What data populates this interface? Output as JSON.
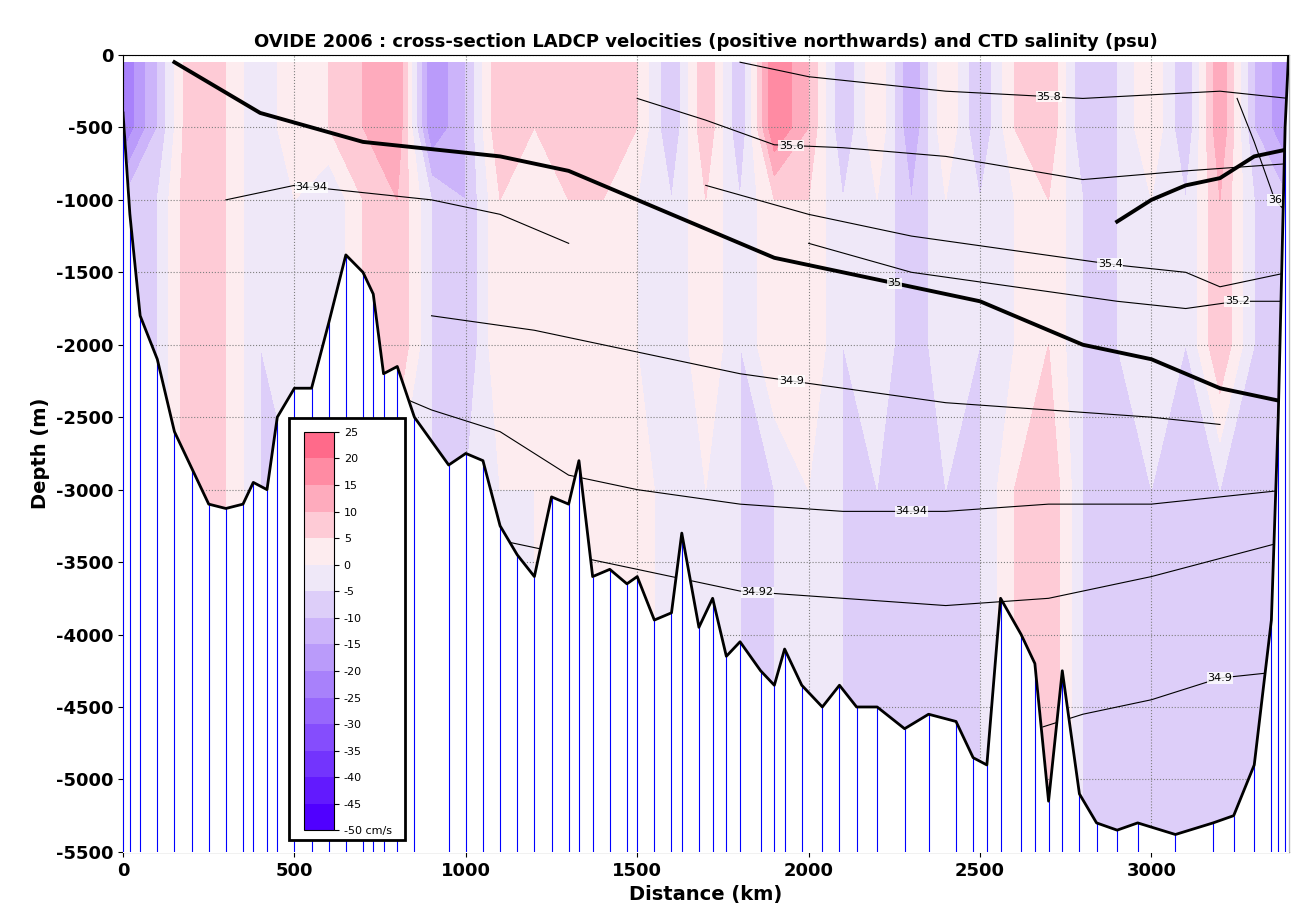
{
  "chart_data": {
    "type": "contour",
    "title": "OVIDE 2006 : cross-section LADCP velocities (positive northwards) and CTD salinity (psu)",
    "x_label": "Distance (km)",
    "y_label": "Depth (m)",
    "xlim": [
      0,
      3400
    ],
    "ylim": [
      -5500,
      0
    ],
    "xticks": [
      0,
      500,
      1000,
      1500,
      2000,
      2500,
      3000
    ],
    "yticks": [
      -5500,
      -5000,
      -4500,
      -4000,
      -3500,
      -3000,
      -2500,
      -2000,
      -1500,
      -1000,
      -500,
      0
    ],
    "grid": true,
    "velocity": {
      "x": [
        0,
        100,
        200,
        300,
        400,
        500,
        600,
        700,
        800,
        900,
        1000,
        1100,
        1200,
        1300,
        1400,
        1500,
        1600,
        1700,
        1800,
        1900,
        2000,
        2100,
        2200,
        2300,
        2400,
        2500,
        2600,
        2700,
        2800,
        2900,
        3000,
        3100,
        3200,
        3300,
        3400
      ],
      "depth": [
        -50,
        -500,
        -1000,
        -1500,
        -2000,
        -3000,
        -4000,
        -5000,
        -5500
      ],
      "values": [
        [
          -25,
          -10,
          10,
          5,
          -5,
          5,
          5,
          10,
          15,
          -20,
          -10,
          10,
          5,
          10,
          10,
          5,
          -10,
          10,
          -10,
          20,
          10,
          -10,
          5,
          -15,
          5,
          -10,
          5,
          10,
          -10,
          -5,
          5,
          -10,
          15,
          -10,
          -20
        ],
        [
          -25,
          -10,
          10,
          5,
          -5,
          5,
          5,
          10,
          15,
          -20,
          -10,
          10,
          5,
          10,
          10,
          5,
          -10,
          10,
          -10,
          20,
          10,
          -10,
          5,
          -15,
          5,
          -10,
          5,
          10,
          -10,
          -5,
          5,
          -10,
          15,
          -10,
          -20
        ],
        [
          -10,
          -5,
          10,
          5,
          -5,
          0,
          -5,
          5,
          10,
          -5,
          -10,
          5,
          5,
          5,
          5,
          0,
          -5,
          5,
          -5,
          5,
          5,
          -5,
          0,
          -10,
          0,
          -5,
          0,
          5,
          -5,
          -5,
          0,
          -5,
          10,
          -5,
          -10
        ],
        [
          -10,
          -5,
          10,
          5,
          -5,
          0,
          -5,
          5,
          10,
          -5,
          -10,
          5,
          5,
          5,
          5,
          0,
          -5,
          5,
          -5,
          5,
          5,
          -5,
          0,
          -10,
          0,
          -5,
          0,
          5,
          -5,
          -5,
          0,
          -5,
          10,
          -5,
          -10
        ],
        [
          -10,
          -5,
          10,
          5,
          -5,
          0,
          -5,
          5,
          10,
          -5,
          -10,
          5,
          5,
          5,
          5,
          0,
          -5,
          5,
          -5,
          5,
          5,
          -5,
          0,
          -10,
          0,
          -5,
          0,
          5,
          -5,
          -5,
          0,
          -5,
          10,
          -5,
          -10
        ],
        [
          -5,
          -5,
          10,
          5,
          -5,
          -5,
          -5,
          -5,
          0,
          -5,
          -5,
          0,
          0,
          5,
          5,
          5,
          -5,
          0,
          -5,
          -5,
          0,
          -5,
          -5,
          -5,
          -5,
          -5,
          5,
          10,
          -5,
          -5,
          -5,
          -5,
          -5,
          -5,
          -10
        ],
        [
          -5,
          -5,
          10,
          5,
          -5,
          -5,
          -5,
          -5,
          0,
          -5,
          -5,
          0,
          0,
          5,
          5,
          5,
          -5,
          0,
          -5,
          -5,
          0,
          -5,
          -5,
          -5,
          -5,
          -5,
          5,
          10,
          -5,
          -5,
          -5,
          -5,
          -5,
          -5,
          -10
        ],
        [
          -5,
          -5,
          10,
          5,
          -5,
          -5,
          -5,
          -5,
          0,
          -5,
          -5,
          0,
          0,
          5,
          5,
          5,
          -5,
          0,
          -5,
          -5,
          0,
          -5,
          -5,
          -5,
          -5,
          -5,
          5,
          10,
          -5,
          -5,
          -5,
          -5,
          -5,
          -5,
          -10
        ],
        [
          -5,
          -5,
          10,
          5,
          -5,
          -5,
          -5,
          -5,
          0,
          -5,
          -5,
          0,
          0,
          5,
          5,
          5,
          -5,
          0,
          -5,
          -5,
          0,
          -5,
          -5,
          -5,
          -5,
          -5,
          5,
          10,
          -5,
          -5,
          -5,
          -5,
          -5,
          -5,
          -10
        ]
      ]
    },
    "colorbar": {
      "clim": [
        -50,
        25
      ],
      "ticks": [
        {
          "value": -50,
          "label": "-50 cm/s"
        },
        -45,
        -40,
        -35,
        -30,
        -25,
        -20,
        -15,
        -10,
        -5,
        0,
        5,
        10,
        15,
        20,
        25
      ]
    },
    "bathymetry": {
      "x": [
        0,
        20,
        50,
        100,
        150,
        200,
        250,
        300,
        350,
        380,
        420,
        450,
        500,
        550,
        600,
        650,
        700,
        730,
        760,
        800,
        850,
        950,
        1000,
        1050,
        1100,
        1150,
        1200,
        1250,
        1300,
        1330,
        1370,
        1420,
        1470,
        1500,
        1550,
        1600,
        1630,
        1680,
        1720,
        1760,
        1800,
        1860,
        1900,
        1930,
        1980,
        2040,
        2090,
        2140,
        2200,
        2280,
        2350,
        2430,
        2480,
        2520,
        2560,
        2620,
        2660,
        2700,
        2740,
        2790,
        2840,
        2900,
        2960,
        3070,
        3180,
        3240,
        3300,
        3350,
        3370,
        3390,
        3400
      ],
      "depth": [
        -400,
        -1100,
        -1800,
        -2100,
        -2600,
        -2850,
        -3100,
        -3130,
        -3100,
        -2950,
        -3000,
        -2500,
        -2300,
        -2300,
        -1850,
        -1380,
        -1500,
        -1650,
        -2200,
        -2150,
        -2500,
        -2830,
        -2750,
        -2800,
        -3250,
        -3450,
        -3600,
        -3050,
        -3100,
        -2800,
        -3600,
        -3550,
        -3650,
        -3600,
        -3900,
        -3850,
        -3300,
        -3950,
        -3750,
        -4150,
        -4050,
        -4250,
        -4350,
        -4100,
        -4350,
        -4500,
        -4350,
        -4500,
        -4500,
        -4650,
        -4550,
        -4600,
        -4850,
        -4900,
        -3750,
        -4000,
        -4200,
        -5150,
        -4250,
        -5100,
        -5300,
        -5350,
        -5300,
        -5380,
        -5300,
        -5250,
        -4900,
        -3900,
        -2500,
        -500,
        0
      ]
    },
    "salinity_contours": [
      {
        "level": 35.8,
        "x": [
          1800,
          2000,
          2400,
          2800,
          3200,
          3400
        ],
        "depth": [
          -50,
          -150,
          -250,
          -300,
          -250,
          -300
        ],
        "label_x": 2700
      },
      {
        "level": 35.6,
        "x": [
          1500,
          1700,
          1900,
          2100,
          2400,
          2800,
          3100,
          3400
        ],
        "depth": [
          -300,
          -450,
          -620,
          -640,
          -700,
          -860,
          -800,
          -750
        ],
        "label_x": 1950
      },
      {
        "level": 36,
        "x": [
          3250,
          3300,
          3360,
          3400
        ],
        "depth": [
          -300,
          -600,
          -1000,
          -1100
        ],
        "label_x": 3360
      },
      {
        "level": 35.4,
        "x": [
          1700,
          2000,
          2300,
          2600,
          2900,
          3100,
          3200,
          3400
        ],
        "depth": [
          -900,
          -1100,
          -1250,
          -1350,
          -1450,
          -1500,
          -1600,
          -1500
        ],
        "label_x": 2880
      },
      {
        "level": 35,
        "x": [
          150,
          400,
          700,
          1100,
          1300,
          1600,
          1900,
          2100,
          2500,
          2800,
          3000,
          3200,
          3400
        ],
        "depth": [
          -50,
          -400,
          -600,
          -700,
          -800,
          -1100,
          -1400,
          -1500,
          -1700,
          -2000,
          -2100,
          -2300,
          -2400
        ],
        "label_x": 2250,
        "line_style": "thick"
      },
      {
        "level": 35,
        "x": [
          2900,
          3000,
          3100,
          3200,
          3300,
          3400
        ],
        "depth": [
          -1150,
          -1000,
          -900,
          -850,
          -700,
          -650
        ],
        "line_style": "thick"
      },
      {
        "level": 35.2,
        "x": [
          2000,
          2300,
          2600,
          2900,
          3100,
          3250,
          3400
        ],
        "depth": [
          -1300,
          -1500,
          -1600,
          -1700,
          -1750,
          -1700,
          -1700
        ],
        "label_x": 3250
      },
      {
        "level": 34.94,
        "x": [
          300,
          500,
          700,
          900,
          1100,
          1300
        ],
        "depth": [
          -1000,
          -900,
          -950,
          -1000,
          -1100,
          -1300
        ],
        "label_x": 550
      },
      {
        "level": 34.94,
        "x": [
          750,
          900,
          1100,
          1300,
          1500,
          1800,
          2100,
          2400,
          2700,
          3000,
          3400
        ],
        "depth": [
          -2300,
          -2450,
          -2600,
          -2900,
          -3000,
          -3100,
          -3150,
          -3150,
          -3100,
          -3100,
          -3000
        ],
        "label_x": 2300
      },
      {
        "level": 34.9,
        "x": [
          900,
          1200,
          1500,
          1800,
          2100,
          2400,
          2700,
          3000,
          3200
        ],
        "depth": [
          -1800,
          -1900,
          -2050,
          -2200,
          -2300,
          -2400,
          -2450,
          -2500,
          -2550
        ],
        "label_x": 1950
      },
      {
        "level": 34.92,
        "x": [
          1000,
          1400,
          1800,
          2100,
          2400,
          2700,
          3000,
          3400
        ],
        "depth": [
          -3300,
          -3500,
          -3700,
          -3750,
          -3800,
          -3750,
          -3600,
          -3350
        ],
        "label_x": 1850
      },
      {
        "level": 34.9,
        "x": [
          2600,
          2800,
          3000,
          3200,
          3400
        ],
        "depth": [
          -4700,
          -4550,
          -4450,
          -4300,
          -4250
        ],
        "label_x": 3200
      }
    ]
  }
}
